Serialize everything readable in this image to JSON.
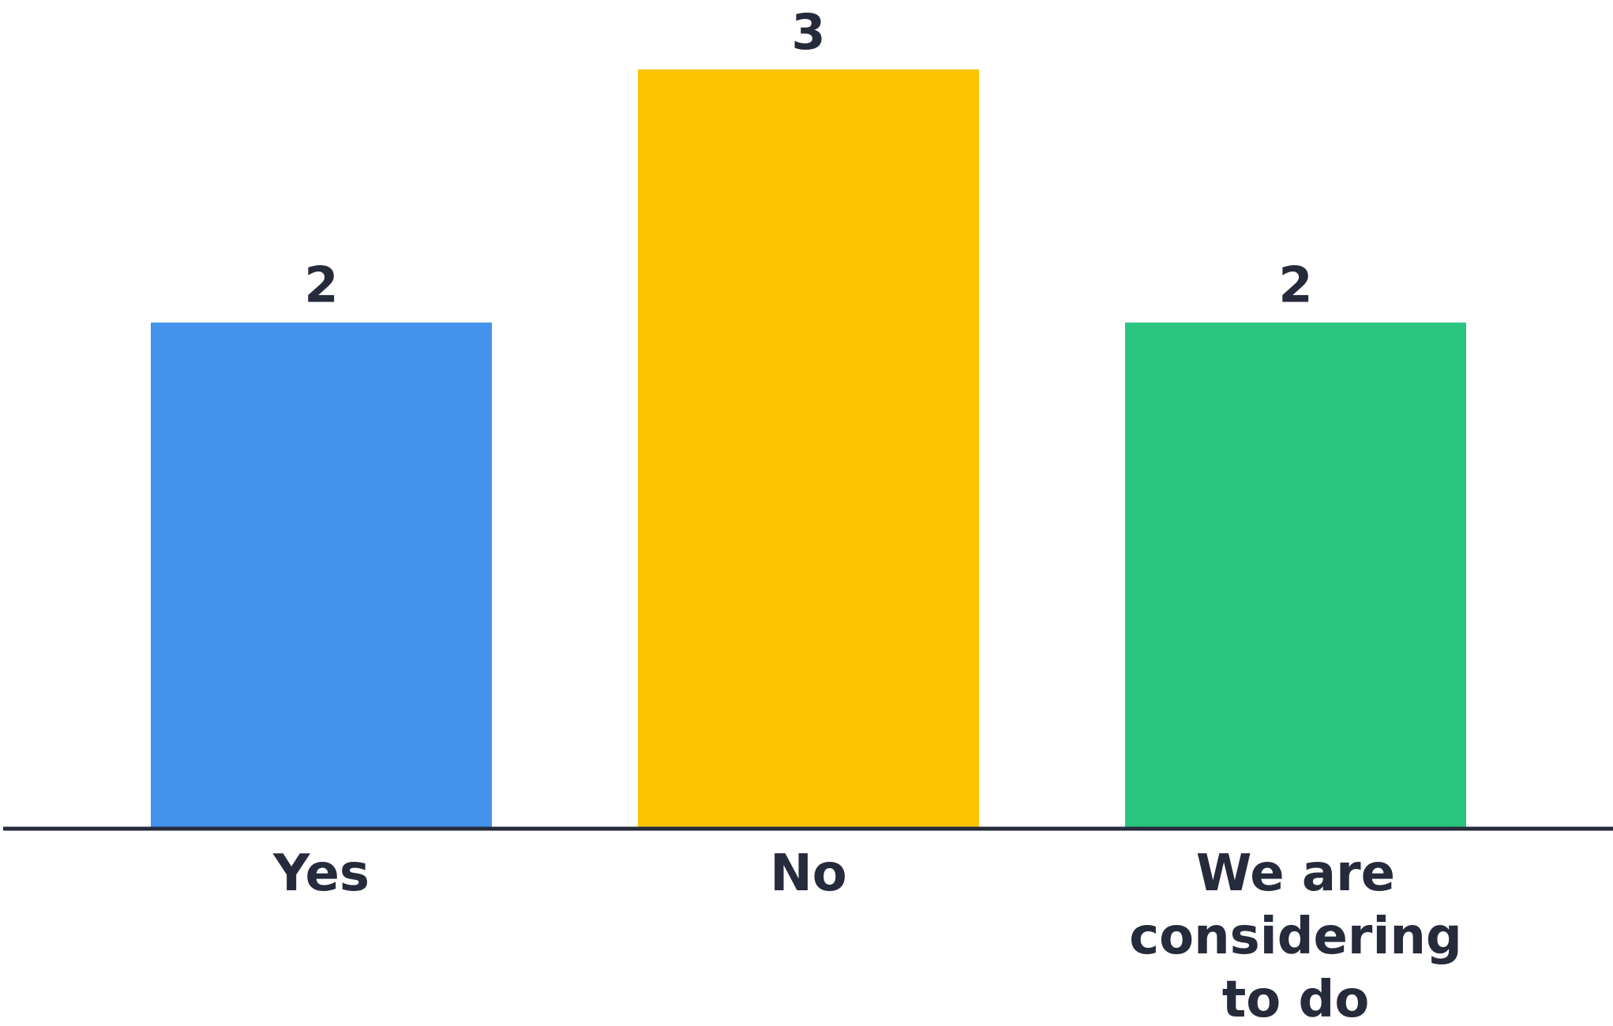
{
  "chart_data": {
    "type": "bar",
    "categories": [
      "Yes",
      "No",
      "We are considering to do"
    ],
    "category_lines": [
      [
        "Yes"
      ],
      [
        "No"
      ],
      [
        "We are",
        "considering",
        "to do"
      ]
    ],
    "values": [
      2,
      3,
      2
    ],
    "data_labels": [
      "2",
      "3",
      "2"
    ],
    "colors": [
      "#4392ec",
      "#fcc402",
      "#29c47f"
    ],
    "axis_color": "#262b3b",
    "ylim": [
      0,
      3
    ],
    "grid": false,
    "legend": "none",
    "title": "",
    "xlabel": "",
    "ylabel": ""
  }
}
